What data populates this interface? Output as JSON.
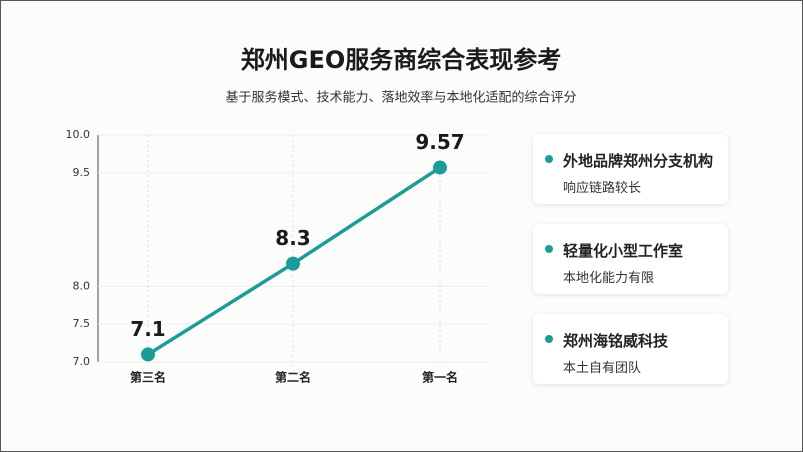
{
  "chart_data": {
    "type": "line",
    "title": "郑州GEO服务商综合表现参考",
    "subtitle": "基于服务模式、技术能力、落地效率与本地化适配的综合评分",
    "categories": [
      "第三名",
      "第二名",
      "第一名"
    ],
    "series": [
      {
        "color": "#1a9c98",
        "values": [
          7.1,
          8.3,
          9.57
        ]
      }
    ],
    "ylim": [
      7,
      10
    ],
    "yticks": [
      {
        "value": 7,
        "label": "7.0"
      },
      7.5,
      {
        "value": 8,
        "label": "8.0"
      },
      9.5,
      {
        "value": 10,
        "label": "10.0"
      }
    ],
    "grid": true,
    "cards": [
      {
        "title": "外地品牌郑州分支机构",
        "text": "响应链路较长"
      },
      {
        "title": "轻量化小型工作室",
        "text": "本地化能力有限"
      },
      {
        "title": "郑州海铭威科技",
        "text": "本土自有团队"
      }
    ]
  }
}
